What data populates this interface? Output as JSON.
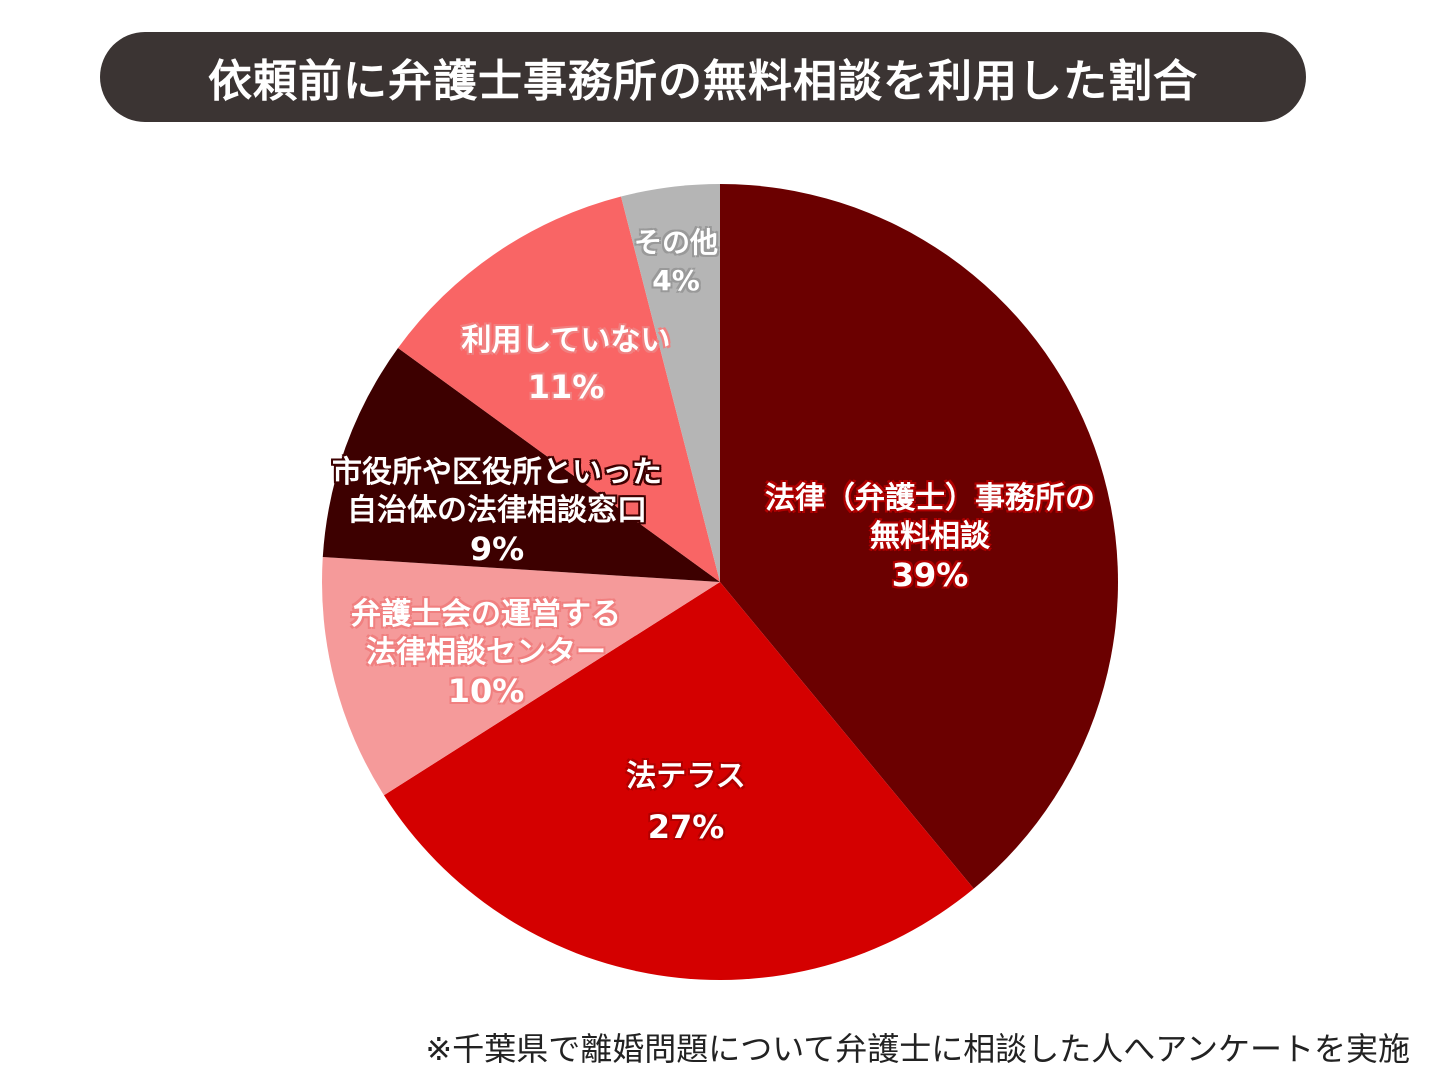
{
  "title": "依頼前に弁護士事務所の無料相談を利用した割合",
  "footnote": "※千葉県で離婚問題について弁護士に相談した人へアンケートを実施",
  "labels": {
    "s0": {
      "line1": "法律（弁護士）事務所の",
      "line2": "無料相談",
      "pct": "39%"
    },
    "s1": {
      "line1": "法テラス",
      "pct": "27%"
    },
    "s2": {
      "line1": "弁護士会の運営する",
      "line2": "法律相談センター",
      "pct": "10%"
    },
    "s3": {
      "line1": "市役所や区役所といった",
      "line2": "自治体の法律相談窓口",
      "pct": "9%"
    },
    "s4": {
      "line1": "利用していない",
      "pct": "11%"
    },
    "s5": {
      "line1": "その他",
      "pct": "4%"
    }
  },
  "chart_data": {
    "type": "pie",
    "title": "依頼前に弁護士事務所の無料相談を利用した割合",
    "categories": [
      "法律（弁護士）事務所の無料相談",
      "法テラス",
      "弁護士会の運営する法律相談センター",
      "市役所や区役所といった自治体の法律相談窓口",
      "利用していない",
      "その他"
    ],
    "values": [
      39,
      27,
      10,
      9,
      11,
      4
    ],
    "unit": "%",
    "colors": [
      "#6b0000",
      "#d40000",
      "#f59a9a",
      "#3d0000",
      "#f96565",
      "#b5b5b5"
    ],
    "start_angle": "12 o'clock",
    "direction": "clockwise",
    "legend": "none (inline labels)",
    "note": "※千葉県で離婚問題について弁護士に相談した人へアンケートを実施"
  }
}
